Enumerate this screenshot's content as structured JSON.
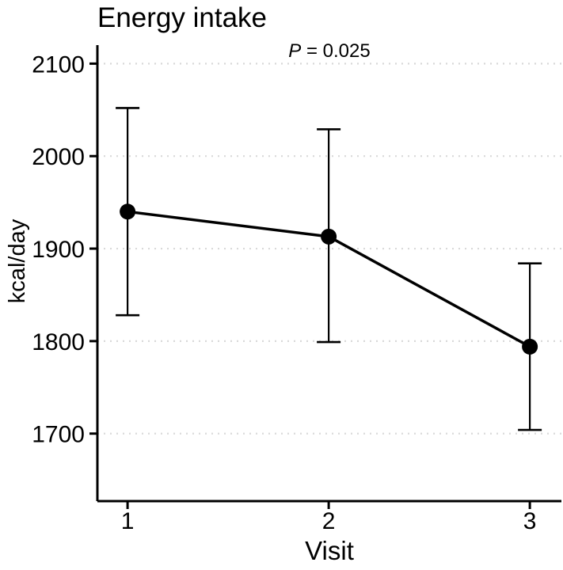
{
  "chart_data": {
    "type": "line",
    "title": "Energy intake",
    "annotation": {
      "symbol": "P",
      "rest": " = 0.025"
    },
    "xlabel": "Visit",
    "ylabel": "kcal/day",
    "x": [
      1,
      2,
      3
    ],
    "xticks": [
      1,
      2,
      3
    ],
    "yticks": [
      1700,
      1800,
      1900,
      2000,
      2100
    ],
    "xlim": [
      0.85,
      3.157
    ],
    "ylim": [
      1627,
      2120
    ],
    "grid": {
      "horizontal": true,
      "style": "dotted",
      "color": "#d9d9d9"
    },
    "legend": "none",
    "series": [
      {
        "name": "Energy intake",
        "values": [
          1940,
          1913,
          1794
        ],
        "ci_low": [
          1828,
          1799,
          1704
        ],
        "ci_high": [
          2052,
          2029,
          1884
        ],
        "color": "#000000"
      }
    ]
  }
}
